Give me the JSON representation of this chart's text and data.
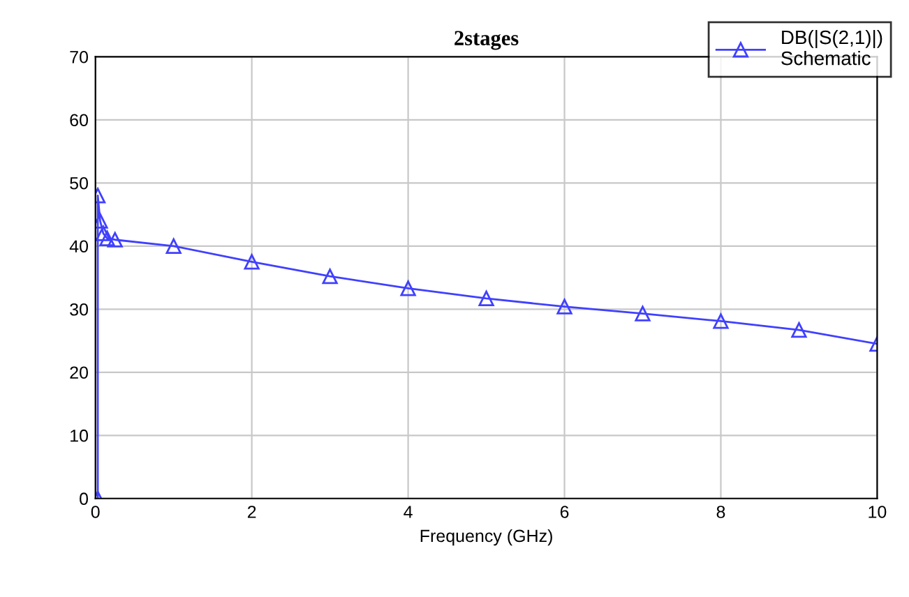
{
  "chart_data": {
    "type": "line",
    "title": "2stages",
    "xlabel": "Frequency (GHz)",
    "xlim": [
      0,
      10
    ],
    "xticks": [
      0,
      2,
      4,
      6,
      8,
      10
    ],
    "ylim": [
      0,
      70
    ],
    "yticks": [
      0,
      10,
      20,
      30,
      40,
      50,
      60,
      70
    ],
    "grid": true,
    "legend": "top right",
    "marker": "triangle",
    "line_style": "solid",
    "series": [
      {
        "name": "DB(|S(2,1)|)\nSchematic",
        "color": "#4040ff",
        "x": [
          0.03,
          0.03,
          0.06,
          0.1,
          0.15,
          0.25,
          1,
          2,
          3,
          4,
          5,
          6,
          7,
          8,
          9,
          10
        ],
        "values": [
          0,
          48,
          44,
          42,
          41.2,
          41,
          40,
          37.5,
          35.2,
          33.3,
          31.7,
          30.4,
          29.3,
          28.1,
          26.7,
          24.5
        ]
      }
    ]
  }
}
